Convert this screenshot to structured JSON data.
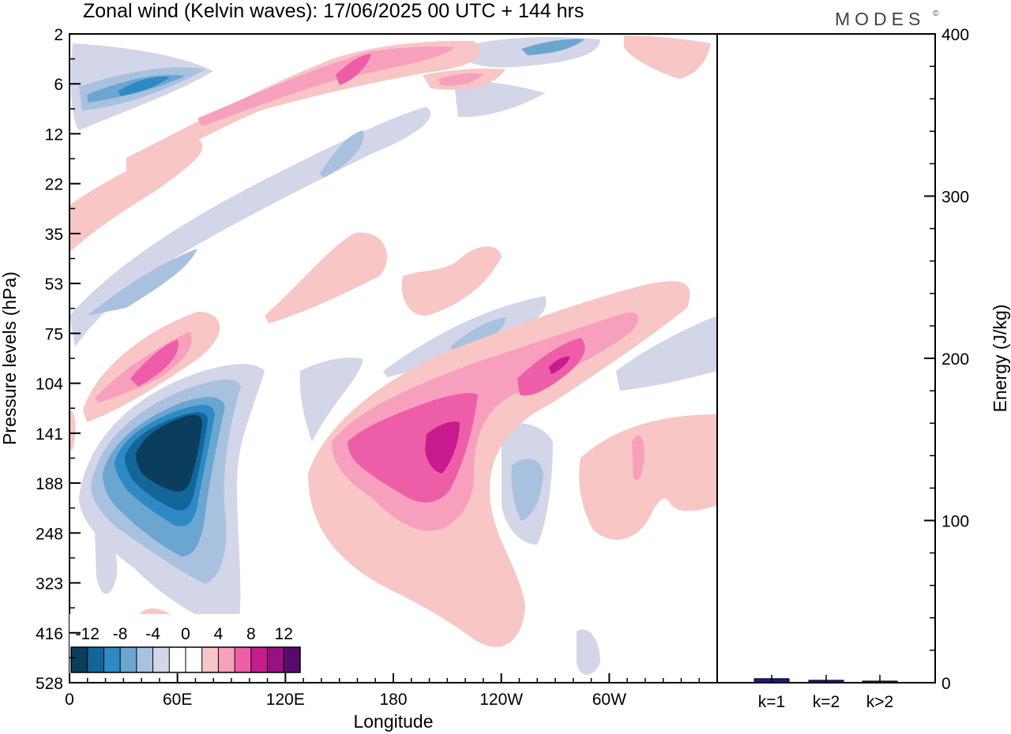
{
  "title": "Zonal wind (Kelvin waves):  17/06/2025  00 UTC  + 144 hrs",
  "brand": "MODES",
  "brand_mark": "©",
  "chart_data": [
    {
      "type": "heatmap",
      "title": "Zonal wind (Kelvin waves):  17/06/2025  00 UTC  + 144 hrs",
      "xlabel": "Longitude",
      "ylabel": "Pressure levels (hPa)",
      "x_tick_labels": [
        "0",
        "60E",
        "120E",
        "180",
        "120W",
        "60W"
      ],
      "x_ticks_deg": [
        0,
        60,
        120,
        180,
        240,
        300
      ],
      "x_range_deg": [
        0,
        360
      ],
      "y_tick_labels": [
        "2",
        "6",
        "12",
        "22",
        "35",
        "53",
        "75",
        "104",
        "141",
        "188",
        "248",
        "323",
        "416",
        "528"
      ],
      "y_scale": "model levels, 2 hPa at top to 528 hPa at bottom",
      "colorbar": {
        "tick_labels": [
          "-12",
          "-8",
          "-4",
          "0",
          "4",
          "8",
          "12"
        ],
        "colors": [
          "#0b3d5c",
          "#12669a",
          "#2d8ac4",
          "#6aa6cf",
          "#a8c1df",
          "#d3d5e8",
          "#ffffff",
          "#ffffff",
          "#f8c6c4",
          "#f7a0bd",
          "#ee5ea8",
          "#c71b8f",
          "#9a0f82",
          "#5a0a6e"
        ]
      },
      "features": [
        {
          "sign": "negative",
          "center_lon": 42,
          "center_hpa": 160,
          "peak": -14,
          "note": "strongest easterly anomaly"
        },
        {
          "sign": "positive",
          "center_lon": 196,
          "center_hpa": 150,
          "peak": 10
        },
        {
          "sign": "positive",
          "center_lon": 282,
          "center_hpa": 95,
          "peak": 11
        },
        {
          "sign": "positive",
          "center_lon": 50,
          "center_hpa": 90,
          "peak": 8
        },
        {
          "sign": "negative",
          "center_lon": 50,
          "center_hpa": 6,
          "peak": -7
        }
      ]
    },
    {
      "type": "bar",
      "ylabel": "Energy (J/kg)",
      "ylim": [
        0,
        400
      ],
      "y_ticks": [
        0,
        100,
        200,
        300,
        400
      ],
      "categories": [
        "k=1",
        "k=2",
        "k>2"
      ],
      "values": [
        2.5,
        1.5,
        1.0
      ],
      "bar_color": "#1a1a8c"
    }
  ]
}
